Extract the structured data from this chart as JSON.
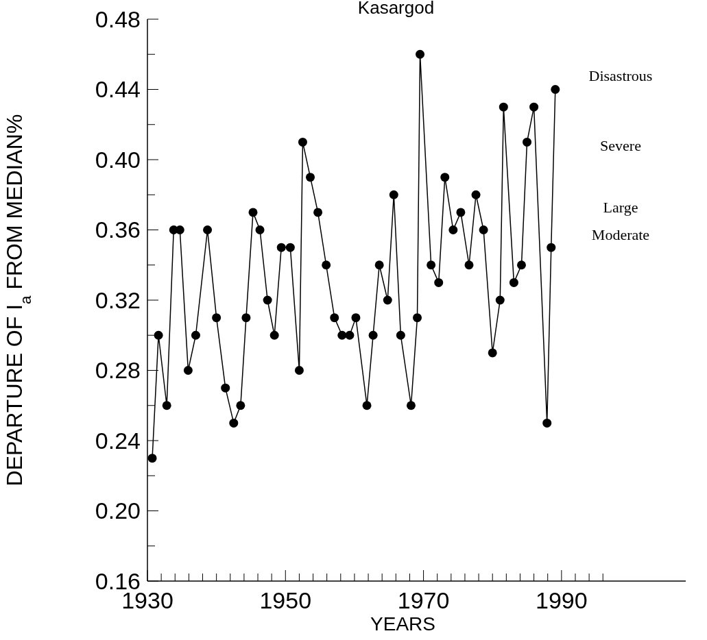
{
  "chart_data": {
    "type": "line",
    "title": "Kasargod",
    "xlabel": "YEARS",
    "ylabel": "DEPARTURE OF I$_{a}$ FROM MEDIAN%",
    "x": [
      1930.7,
      1931.6,
      1932.8,
      1933.8,
      1934.7,
      1935.9,
      1937.0,
      1938.7,
      1940.0,
      1941.3,
      1942.5,
      1943.5,
      1944.3,
      1945.3,
      1946.3,
      1947.4,
      1948.4,
      1949.4,
      1950.7,
      1952.0,
      1952.5,
      1953.6,
      1954.7,
      1955.9,
      1957.1,
      1958.2,
      1959.3,
      1960.2,
      1961.8,
      1962.7,
      1963.6,
      1964.8,
      1965.7,
      1966.7,
      1968.2,
      1969.1,
      1969.5,
      1971.1,
      1972.2,
      1973.1,
      1974.3,
      1975.4,
      1976.6,
      1977.6,
      1978.7,
      1980.0,
      1981.1,
      1981.6,
      1983.1,
      1984.2,
      1985.0,
      1986.0,
      1987.9,
      1988.5,
      1989.1
    ],
    "series": [
      {
        "color": "#000000",
        "values": [
          0.23,
          0.3,
          0.26,
          0.36,
          0.36,
          0.28,
          0.3,
          0.36,
          0.31,
          0.27,
          0.25,
          0.26,
          0.31,
          0.37,
          0.36,
          0.32,
          0.3,
          0.35,
          0.35,
          0.28,
          0.41,
          0.39,
          0.37,
          0.34,
          0.31,
          0.3,
          0.3,
          0.31,
          0.26,
          0.3,
          0.34,
          0.32,
          0.38,
          0.3,
          0.26,
          0.31,
          0.46,
          0.34,
          0.33,
          0.39,
          0.36,
          0.37,
          0.34,
          0.38,
          0.36,
          0.29,
          0.32,
          0.43,
          0.33,
          0.34,
          0.41,
          0.43,
          0.25,
          0.35,
          0.44
        ]
      }
    ],
    "xlim": [
      1930,
      2008
    ],
    "xticks": [
      1930,
      {
        "value": 1932,
        "label": null
      },
      {
        "value": 1934,
        "label": null
      },
      {
        "value": 1936,
        "label": null
      },
      {
        "value": 1938,
        "label": null
      },
      {
        "value": 1940,
        "label": null
      },
      {
        "value": 1942,
        "label": null
      },
      {
        "value": 1944,
        "label": null
      },
      {
        "value": 1946,
        "label": null
      },
      {
        "value": 1948,
        "label": null
      },
      1950,
      {
        "value": 1952,
        "label": null
      },
      {
        "value": 1954,
        "label": null
      },
      {
        "value": 1956,
        "label": null
      },
      {
        "value": 1958,
        "label": null
      },
      {
        "value": 1960,
        "label": null
      },
      {
        "value": 1962,
        "label": null
      },
      {
        "value": 1964,
        "label": null
      },
      {
        "value": 1966,
        "label": null
      },
      {
        "value": 1968,
        "label": null
      },
      1970,
      {
        "value": 1972,
        "label": null
      },
      {
        "value": 1974,
        "label": null
      },
      {
        "value": 1976,
        "label": null
      },
      {
        "value": 1978,
        "label": null
      },
      {
        "value": 1980,
        "label": null
      },
      {
        "value": 1982,
        "label": null
      },
      {
        "value": 1984,
        "label": null
      },
      {
        "value": 1986,
        "label": null
      },
      {
        "value": 1988,
        "label": null
      },
      1990,
      {
        "value": 1992,
        "label": null
      },
      {
        "value": 1994,
        "label": null
      },
      {
        "value": 1996,
        "label": null
      }
    ],
    "ylim": [
      0.16,
      0.48
    ],
    "yticks": [
      {
        "value": 0.16,
        "label": "0.16"
      },
      {
        "value": 0.18,
        "label": null
      },
      {
        "value": 0.2,
        "label": "0.20"
      },
      {
        "value": 0.22,
        "label": null
      },
      {
        "value": 0.24,
        "label": "0.24"
      },
      {
        "value": 0.26,
        "label": null
      },
      {
        "value": 0.28,
        "label": "0.28"
      },
      {
        "value": 0.3,
        "label": null
      },
      {
        "value": 0.32,
        "label": "0.32"
      },
      {
        "value": 0.34,
        "label": null
      },
      {
        "value": 0.36,
        "label": "0.36"
      },
      {
        "value": 0.38,
        "label": null
      },
      {
        "value": 0.4,
        "label": "0.40"
      },
      {
        "value": 0.42,
        "label": null
      },
      {
        "value": 0.44,
        "label": "0.44"
      },
      {
        "value": 0.46,
        "label": null
      },
      {
        "value": 0.48,
        "label": "0.48"
      }
    ],
    "marker": "circle",
    "line_style": "solid",
    "grid": false,
    "annotations": [
      "Disastrous",
      "Severe",
      "Large",
      "Moderate"
    ]
  }
}
